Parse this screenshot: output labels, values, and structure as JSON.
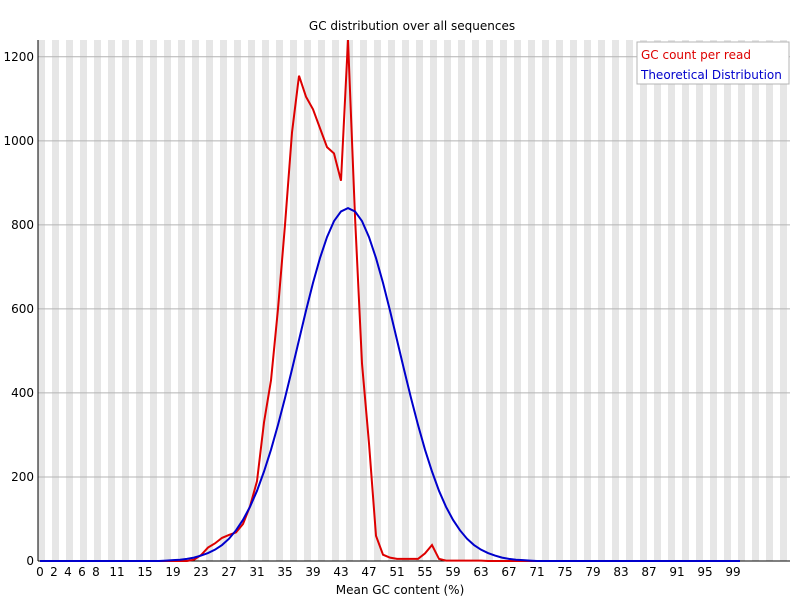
{
  "chart_data": {
    "type": "line",
    "title": "GC distribution over all sequences",
    "x_label": "Mean GC content (%)",
    "categories": [
      "0",
      null,
      "2",
      null,
      "4",
      null,
      "6",
      null,
      "8",
      null,
      null,
      "11",
      null,
      null,
      null,
      "15",
      null,
      null,
      null,
      "19",
      null,
      null,
      null,
      "23",
      null,
      null,
      null,
      "27",
      null,
      null,
      null,
      "31",
      null,
      null,
      null,
      "35",
      null,
      null,
      null,
      "39",
      null,
      null,
      null,
      "43",
      null,
      null,
      null,
      "47",
      null,
      null,
      null,
      "51",
      null,
      null,
      null,
      "55",
      null,
      null,
      null,
      "59",
      null,
      null,
      null,
      "63",
      null,
      null,
      null,
      "67",
      null,
      null,
      null,
      "71",
      null,
      null,
      null,
      "75",
      null,
      null,
      null,
      "79",
      null,
      null,
      null,
      "83",
      null,
      null,
      null,
      "87",
      null,
      null,
      null,
      "91",
      null,
      null,
      null,
      "95",
      null,
      null,
      null,
      "99",
      null
    ],
    "series": [
      {
        "name": "GC count per read",
        "color": "#dd0000",
        "values": [
          0,
          0,
          0,
          0,
          0,
          0,
          0,
          0,
          0,
          0,
          0,
          0,
          0,
          0,
          0,
          0,
          0,
          0,
          0,
          0,
          0,
          0,
          3,
          14,
          32,
          42,
          55,
          62,
          68,
          88,
          130,
          190,
          330,
          430,
          600,
          800,
          1020,
          1155,
          1105,
          1075,
          1030,
          985,
          970,
          905,
          1240,
          820,
          470,
          280,
          60,
          15,
          8,
          5,
          5,
          5,
          5,
          18,
          38,
          5,
          1,
          1,
          1,
          1,
          1,
          1,
          0,
          0,
          0,
          0,
          0,
          0,
          0,
          0,
          0,
          0,
          0,
          0,
          0,
          0,
          0,
          0,
          0,
          0,
          0,
          0,
          0,
          0,
          0,
          0,
          0,
          0,
          0,
          0,
          0,
          0,
          0,
          0,
          0,
          0,
          0,
          0,
          0
        ]
      },
      {
        "name": "Theoretical Distribution",
        "color": "#0000cc",
        "values": [
          0,
          0,
          0,
          0,
          0,
          0,
          0,
          0,
          0,
          0,
          0,
          0,
          0,
          0,
          0,
          0,
          0,
          0,
          1,
          2,
          3,
          5,
          8,
          13,
          19,
          27,
          38,
          53,
          73,
          98,
          129,
          167,
          213,
          265,
          324,
          388,
          456,
          526,
          596,
          662,
          721,
          771,
          809,
          832,
          840,
          832,
          809,
          771,
          721,
          662,
          596,
          526,
          456,
          388,
          324,
          265,
          213,
          167,
          129,
          98,
          73,
          53,
          38,
          27,
          19,
          13,
          8,
          5,
          3,
          2,
          1,
          0,
          0,
          0,
          0,
          0,
          0,
          0,
          0,
          0,
          0,
          0,
          0,
          0,
          0,
          0,
          0,
          0,
          0,
          0,
          0,
          0,
          0,
          0,
          0,
          0,
          0,
          0,
          0,
          0,
          0
        ]
      }
    ],
    "ylim": [
      0,
      1240
    ],
    "yticks": [
      0,
      200,
      400,
      600,
      800,
      1000,
      1200
    ],
    "grid": true,
    "legend": "top-right"
  }
}
